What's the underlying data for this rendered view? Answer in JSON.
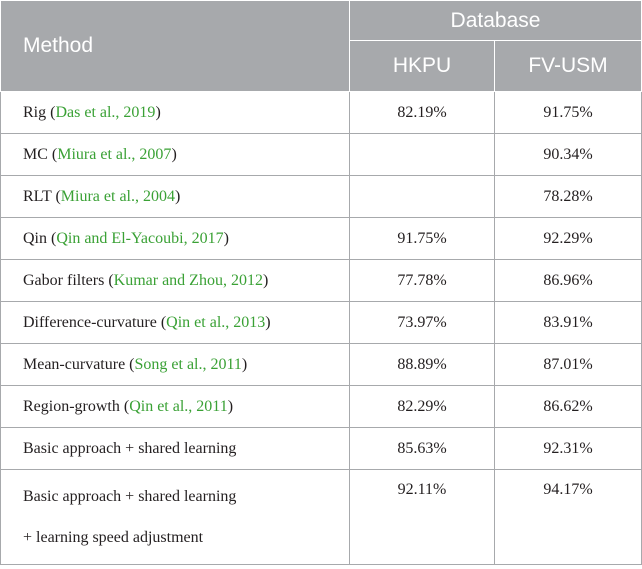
{
  "header": {
    "method": "Method",
    "database": "Database",
    "hkpu": "HKPU",
    "fvusm": "FV-USM"
  },
  "rows": [
    {
      "name": "Rig",
      "cite": "Das et al., 2019",
      "hkpu": "82.19%",
      "fvusm": "91.75%"
    },
    {
      "name": "MC",
      "cite": "Miura et al., 2007",
      "hkpu": "",
      "fvusm": "90.34%"
    },
    {
      "name": "RLT",
      "cite": "Miura et al., 2004",
      "hkpu": "",
      "fvusm": "78.28%"
    },
    {
      "name": "Qin",
      "cite": "Qin and El-Yacoubi, 2017",
      "hkpu": "91.75%",
      "fvusm": "92.29%"
    },
    {
      "name": "Gabor filters",
      "cite": "Kumar and Zhou, 2012",
      "hkpu": "77.78%",
      "fvusm": "86.96%"
    },
    {
      "name": "Difference-curvature",
      "cite": "Qin et al., 2013",
      "hkpu": "73.97%",
      "fvusm": "83.91%"
    },
    {
      "name": "Mean-curvature",
      "cite": "Song et al., 2011",
      "hkpu": "88.89%",
      "fvusm": "87.01%"
    },
    {
      "name": "Region-growth",
      "cite": "Qin et al., 2011",
      "hkpu": "82.29%",
      "fvusm": "86.62%"
    },
    {
      "name": "Basic approach + shared learning",
      "cite": "",
      "hkpu": "85.63%",
      "fvusm": "92.31%"
    },
    {
      "name": "Basic approach + shared learning",
      "name_line2": "+ learning speed adjustment",
      "cite": "",
      "hkpu": "92.11%",
      "fvusm": "94.17%"
    }
  ]
}
